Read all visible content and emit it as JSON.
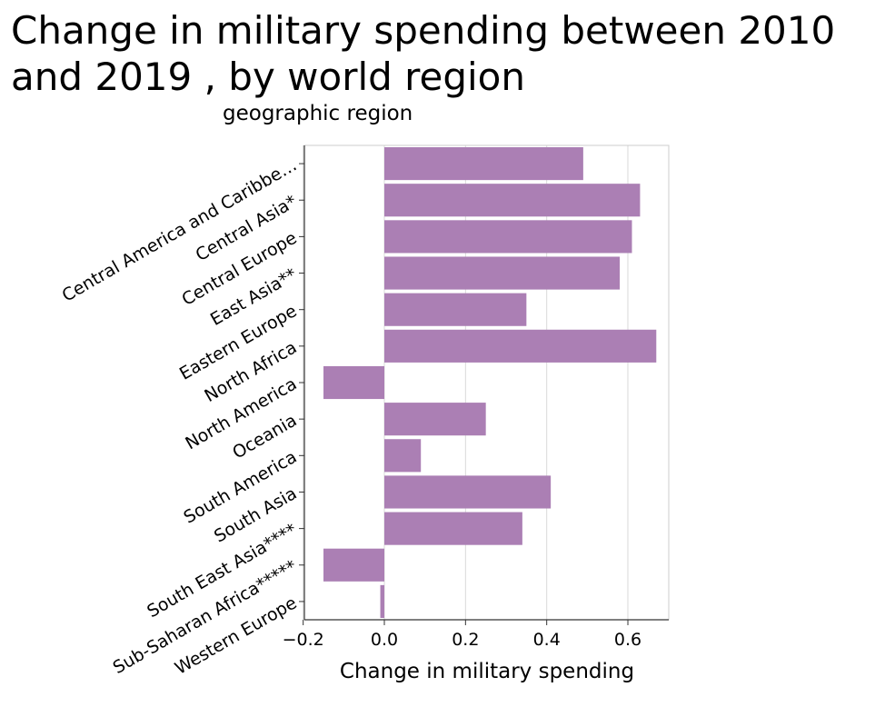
{
  "chart_data": {
    "type": "bar",
    "orientation": "horizontal",
    "title": "Change in military spending between 2010 and 2019 , by world region",
    "title_lines": [
      "Change in military spending between 2010",
      "and 2019 , by world region"
    ],
    "xlabel": "Change in military spending",
    "ylabel": "geographic region",
    "categories": [
      "Central America and Caribbe…",
      "Central Asia*",
      "Central Europe",
      "East Asia**",
      "Eastern Europe",
      "North Africa",
      "North America",
      "Oceania",
      "South America",
      "South Asia",
      "South East Asia****",
      "Sub-Saharan Africa*****",
      "Western Europe"
    ],
    "values": [
      0.49,
      0.63,
      0.61,
      0.58,
      0.35,
      0.67,
      -0.15,
      0.25,
      0.09,
      0.41,
      0.34,
      -0.15,
      -0.01
    ],
    "xticks": [
      "−0.2",
      "0.0",
      "0.2",
      "0.4",
      "0.6"
    ],
    "xtick_values": [
      -0.2,
      0.0,
      0.2,
      0.4,
      0.6
    ],
    "xlim": [
      -0.2,
      0.7
    ],
    "grid": "vertical",
    "bar_color": "#ab7fb4"
  }
}
